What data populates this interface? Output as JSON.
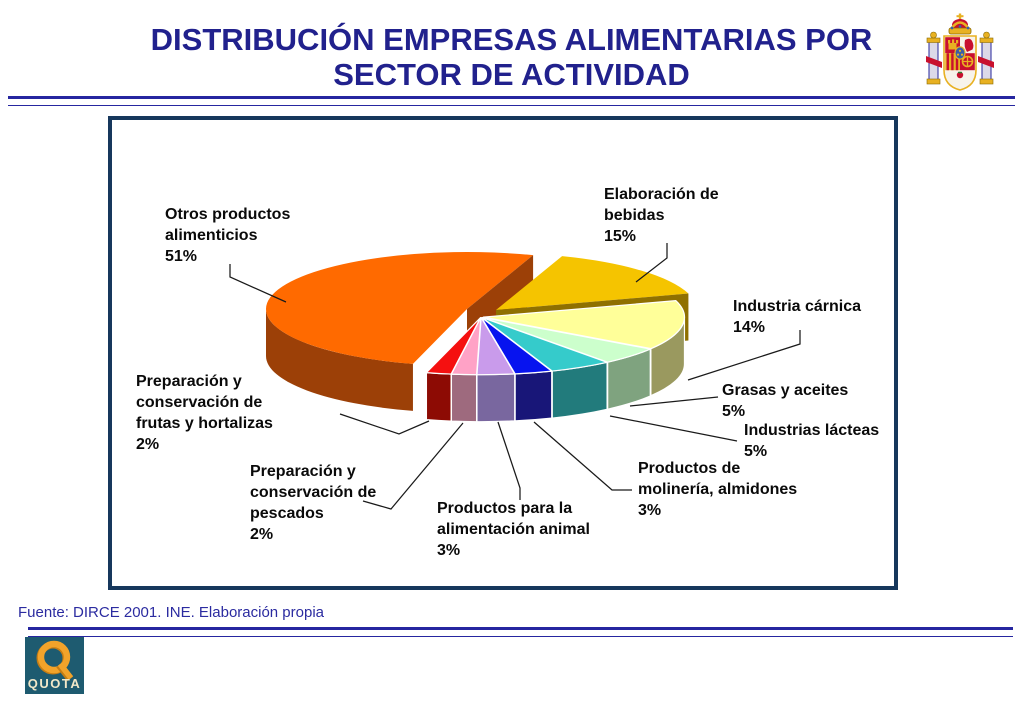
{
  "header": {
    "title_line1": "DISTRIBUCIÓN EMPRESAS ALIMENTARIAS POR",
    "title_line2": "SECTOR DE ACTIVIDAD"
  },
  "footer": {
    "source": "Fuente: DIRCE 2001. INE. Elaboración propia",
    "logo_text": "QUOTA"
  },
  "icons": {
    "coat_of_arms": "spain-coat-of-arms",
    "logo": "quota-logo"
  },
  "colors": {
    "title_text": "#21218D",
    "rule_line": "#2626A0",
    "panel_border": "#16375C",
    "source_text": "#2B2BA0",
    "label_text": "#0A0A0A",
    "leader_line": "#1A1A1A",
    "logo_background": "#1E5B70",
    "logo_gold": "#F2A32A",
    "logo_letters": "#F2E8C9"
  },
  "chart_data": {
    "type": "pie",
    "style": "3d-exploded",
    "unit": "%",
    "legend_position": "callout-labels",
    "total": 100,
    "slices": [
      {
        "id": "bebidas",
        "label": "Elaboración de bebidas",
        "pct": 15,
        "label_lines": [
          "Elaboración de",
          "bebidas",
          "15%"
        ],
        "top_color": "#F5C400",
        "side_color": "#8F7000"
      },
      {
        "id": "carnica",
        "label": "Industria cárnica",
        "pct": 14,
        "label_lines": [
          "Industria cárnica",
          "14%"
        ],
        "top_color": "#FFFF99",
        "side_color": "#9A995F"
      },
      {
        "id": "grasas",
        "label": "Grasas y aceites",
        "pct": 5,
        "label_lines": [
          "Grasas y aceites",
          "5%"
        ],
        "top_color": "#CCFFCC",
        "side_color": "#7FA37F"
      },
      {
        "id": "lacteas",
        "label": "Industrias lácteas",
        "pct": 5,
        "label_lines": [
          "Industrias lácteas",
          "5%"
        ],
        "top_color": "#35CBCB",
        "side_color": "#227B7C"
      },
      {
        "id": "molineria",
        "label": "Productos de molinería, almidones",
        "pct": 3,
        "label_lines": [
          "Productos de",
          "molinería, almidones",
          "3%"
        ],
        "top_color": "#0713EF",
        "side_color": "#181678"
      },
      {
        "id": "animal",
        "label": "Productos para la alimentación animal",
        "pct": 3,
        "label_lines": [
          "Productos para la",
          "alimentación animal",
          "3%"
        ],
        "top_color": "#C99BEB",
        "side_color": "#79679F"
      },
      {
        "id": "pescados",
        "label": "Preparación y conservación de pescados",
        "pct": 2,
        "label_lines": [
          "Preparación y",
          "conservación de",
          "pescados",
          "2%"
        ],
        "top_color": "#FFA2C6",
        "side_color": "#9E6A7E"
      },
      {
        "id": "frutas",
        "label": "Preparación y conservación de frutas y hortalizas",
        "pct": 2,
        "label_lines": [
          "Preparación y",
          "conservación de",
          "frutas y hortalizas",
          "2%"
        ],
        "top_color": "#F51010",
        "side_color": "#8D0B04"
      },
      {
        "id": "otros",
        "label": "Otros productos alimenticios",
        "pct": 51,
        "label_lines": [
          "Otros productos",
          "alimenticios",
          "51%"
        ],
        "top_color": "#FF6A00",
        "side_color": "#9C4007"
      }
    ]
  }
}
